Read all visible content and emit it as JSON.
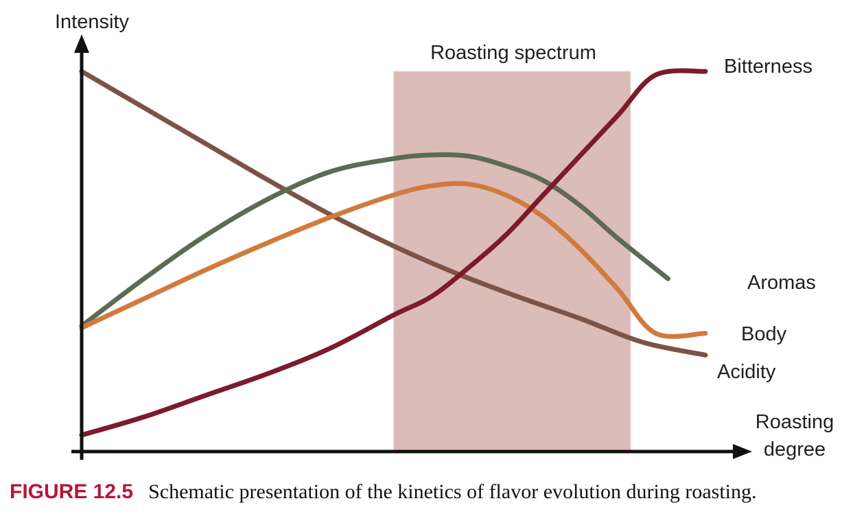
{
  "caption": {
    "figure_number": "FIGURE 12.5",
    "text": "Schematic presentation of the kinetics of flavor evolution during roasting."
  },
  "chart_data": {
    "type": "line",
    "title": "",
    "xlabel": "Roasting degree",
    "ylabel": "Intensity",
    "xlim": [
      0,
      100
    ],
    "ylim": [
      0,
      100
    ],
    "grid": false,
    "legend": "inline labels at line ends",
    "band": {
      "label": "Roasting spectrum",
      "x_start": 50,
      "x_end": 88,
      "top": 100,
      "color": "#dbbcb9"
    },
    "series": [
      {
        "name": "Bitterness",
        "color": "#7d1a2c",
        "x": [
          0,
          10,
          20,
          30,
          40,
          50,
          56,
          62,
          68,
          74,
          80,
          86,
          92,
          100
        ],
        "y": [
          0,
          5,
          11,
          17,
          24,
          33,
          38,
          46,
          55,
          66,
          77,
          88,
          99,
          100
        ]
      },
      {
        "name": "Aromas",
        "color": "#5d6b54",
        "x": [
          0,
          10,
          20,
          30,
          40,
          50,
          56,
          62,
          68,
          74,
          80,
          86,
          94
        ],
        "y": [
          30,
          43,
          55,
          65,
          72.5,
          76,
          77,
          76.7,
          74,
          70,
          63,
          54,
          43
        ]
      },
      {
        "name": "Body",
        "color": "#d07b3e",
        "x": [
          0,
          10,
          20,
          30,
          40,
          50,
          56,
          62,
          68,
          74,
          80,
          86,
          92,
          100
        ],
        "y": [
          29.5,
          37.5,
          45.5,
          53,
          60,
          66,
          68.5,
          69,
          66,
          60,
          51,
          40,
          28,
          28
        ]
      },
      {
        "name": "Acidity",
        "color": "#7c5346",
        "x": [
          0,
          10,
          20,
          30,
          40,
          50,
          60,
          70,
          80,
          90,
          100
        ],
        "y": [
          100,
          90,
          80,
          70,
          60.5,
          52,
          44.5,
          38,
          32,
          25.5,
          22
        ]
      }
    ]
  }
}
